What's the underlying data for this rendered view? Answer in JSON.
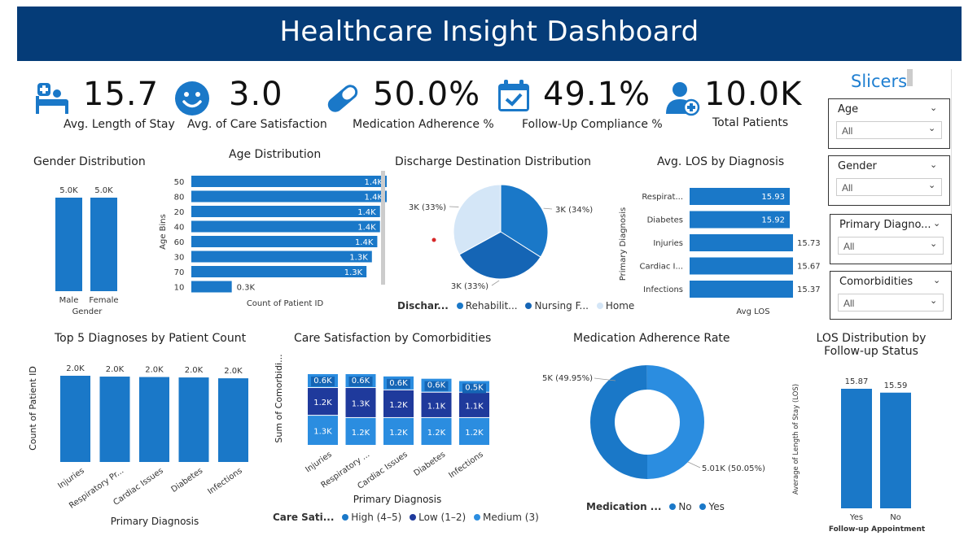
{
  "header": {
    "title": "Healthcare Insight Dashboard"
  },
  "kpis": [
    {
      "icon": "hospital-bed-icon",
      "value": "15.7",
      "label": "Avg. Length of Stay"
    },
    {
      "icon": "smiley-face-icon",
      "value": "3.0",
      "label": "Avg. of Care Satisfaction"
    },
    {
      "icon": "pill-capsule-icon",
      "value": "50.0%",
      "label": "Medication Adherence %"
    },
    {
      "icon": "calendar-check-icon",
      "value": "49.1%",
      "label": "Follow-Up Compliance %"
    },
    {
      "icon": "doctor-icon",
      "value": "10.0K",
      "label": "Total Patients"
    }
  ],
  "colors": {
    "primary": "#1a78c8",
    "dark": "#1f3a9c",
    "light": "#d4e6f7",
    "header": "#053c78",
    "mid": "#2b8de0"
  },
  "charts": {
    "gender": {
      "title": "Gender Distribution",
      "xlabel": "Gender"
    },
    "age": {
      "title": "Age Distribution",
      "ylabel": "Age Bins",
      "xlabel": "Count of Patient ID"
    },
    "discharge": {
      "title": "Discharge Destination Distribution",
      "legend_title": "Dischar...",
      "legend": [
        "Rehabilit...",
        "Nursing F...",
        "Home"
      ]
    },
    "los_diag": {
      "title": "Avg. LOS by Diagnosis",
      "ylabel": "Primary Diagnosis",
      "xlabel": "Avg LOS"
    },
    "top5": {
      "title": "Top 5 Diagnoses by Patient Count",
      "ylabel": "Count of Patient ID",
      "xlabel": "Primary Diagnosis"
    },
    "care_sat": {
      "title": "Care Satisfaction by Comorbidities",
      "ylabel": "Sum of Comorbidi...",
      "xlabel": "Primary Diagnosis",
      "legend_title": "Care Sati...",
      "legend": [
        "High (4–5)",
        "Low (1–2)",
        "Medium (3)"
      ]
    },
    "med_adh": {
      "title": "Medication Adherence Rate",
      "legend_title": "Medication ...",
      "legend": [
        "No",
        "Yes"
      ]
    },
    "los_follow": {
      "title_line1": "LOS Distribution by",
      "title_line2": "Follow-up Status",
      "ylabel": "Average of Length of Stay (LOS)",
      "xlabel": "Follow-up Appointment"
    }
  },
  "chart_data": [
    {
      "type": "bar",
      "id": "gender",
      "categories": [
        "Male",
        "Female"
      ],
      "values": [
        5000,
        5000
      ],
      "labels": [
        "5.0K",
        "5.0K"
      ],
      "xlabel": "Gender"
    },
    {
      "type": "bar",
      "id": "age",
      "orientation": "horizontal",
      "categories": [
        "50",
        "80",
        "20",
        "40",
        "60",
        "30",
        "70",
        "10"
      ],
      "values": [
        1450,
        1450,
        1400,
        1400,
        1380,
        1340,
        1300,
        300
      ],
      "labels": [
        "1.4K",
        "1.4K",
        "1.4K",
        "1.4K",
        "1.4K",
        "1.3K",
        "1.3K",
        "0.3K"
      ],
      "ylabel": "Age Bins",
      "xlabel": "Count of Patient ID"
    },
    {
      "type": "pie",
      "id": "discharge",
      "categories": [
        "Rehabilitation",
        "Nursing Facility",
        "Home"
      ],
      "values": [
        34,
        33,
        33
      ],
      "labels": [
        "3K (34%)",
        "3K (33%)",
        "3K (33%)"
      ]
    },
    {
      "type": "bar",
      "id": "los_diag",
      "orientation": "horizontal",
      "categories": [
        "Respirat...",
        "Diabetes",
        "Injuries",
        "Cardiac I...",
        "Infections"
      ],
      "values": [
        15.93,
        15.92,
        15.73,
        15.67,
        15.37
      ],
      "labels": [
        "15.93",
        "15.92",
        "15.73",
        "15.67",
        "15.37"
      ],
      "ylabel": "Primary Diagnosis",
      "xlabel": "Avg LOS"
    },
    {
      "type": "bar",
      "id": "top5",
      "categories": [
        "Injuries",
        "Respiratory Pr...",
        "Cardiac Issues",
        "Diabetes",
        "Infections"
      ],
      "values": [
        2040,
        2020,
        2010,
        2000,
        1980
      ],
      "labels": [
        "2.0K",
        "2.0K",
        "2.0K",
        "2.0K",
        "2.0K"
      ],
      "ylabel": "Count of Patient ID",
      "xlabel": "Primary Diagnosis"
    },
    {
      "type": "bar",
      "id": "care_sat",
      "stacked": true,
      "categories": [
        "Injuries",
        "Respiratory ...",
        "Cardiac Issues",
        "Diabetes",
        "Infections"
      ],
      "series": [
        {
          "name": "Medium (3)",
          "values": [
            1300,
            1200,
            1200,
            1200,
            1200
          ],
          "labels": [
            "1.3K",
            "1.2K",
            "1.2K",
            "1.2K",
            "1.2K"
          ]
        },
        {
          "name": "Low (1–2)",
          "values": [
            1200,
            1300,
            1200,
            1100,
            1100
          ],
          "labels": [
            "1.2K",
            "1.3K",
            "1.2K",
            "1.1K",
            "1.1K"
          ]
        },
        {
          "name": "High (4–5)",
          "values": [
            600,
            600,
            600,
            600,
            500
          ],
          "labels": [
            "0.6K",
            "0.6K",
            "0.6K",
            "0.6K",
            "0.5K"
          ]
        }
      ],
      "ylabel": "Sum of Comorbidi...",
      "xlabel": "Primary Diagnosis"
    },
    {
      "type": "pie",
      "id": "med_adh",
      "donut": true,
      "categories": [
        "No",
        "Yes"
      ],
      "values": [
        49.95,
        50.05
      ],
      "labels": [
        "5K (49.95%)",
        "5.01K (50.05%)"
      ]
    },
    {
      "type": "bar",
      "id": "los_follow",
      "categories": [
        "Yes",
        "No"
      ],
      "values": [
        15.87,
        15.59
      ],
      "labels": [
        "15.87",
        "15.59"
      ],
      "ylabel": "Average of Length of Stay (LOS)",
      "xlabel": "Follow-up Appointment"
    }
  ],
  "slicers": {
    "title": "Slicers",
    "items": [
      {
        "label": "Age",
        "value": "All"
      },
      {
        "label": "Gender",
        "value": "All"
      },
      {
        "label": "Primary Diagno...",
        "value": "All"
      },
      {
        "label": "Comorbidities",
        "value": "All"
      }
    ]
  }
}
